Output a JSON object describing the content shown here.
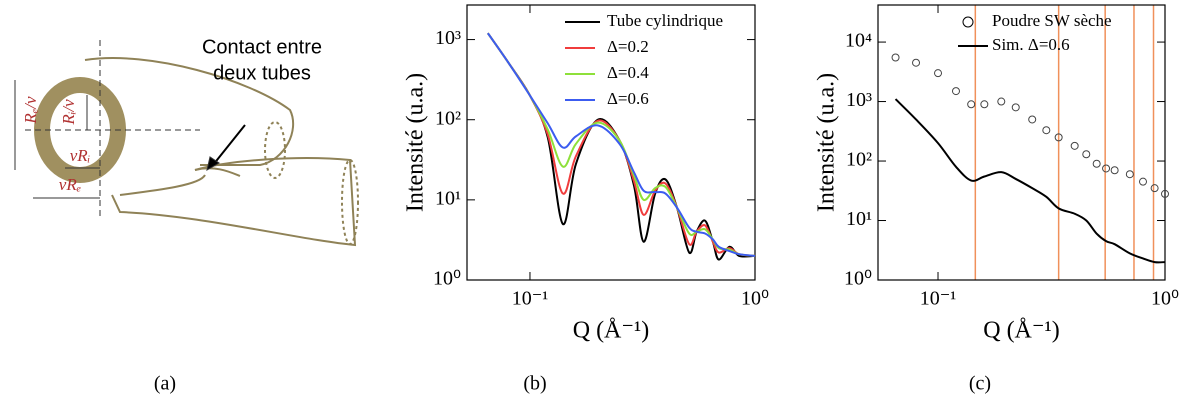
{
  "diagram": {
    "contact_label": [
      "Contact entre",
      "deux tubes"
    ],
    "symbols": [
      "Rₑ/ν",
      "Rᵢ/ν",
      "νRᵢ",
      "νRₑ"
    ]
  },
  "captions": [
    "(a)",
    "(b)",
    "(c)"
  ],
  "chart_data": [
    {
      "type": "line",
      "xlabel": "Q (Å⁻¹)",
      "ylabel": "Intensité (u.a.)",
      "xscale": "log",
      "yscale": "log",
      "xlim": [
        0.0525,
        1
      ],
      "ylim": [
        1,
        2700
      ],
      "xticks": [
        {
          "value": 0.1,
          "label": "10⁻¹"
        },
        {
          "value": 1,
          "label": "10⁰"
        }
      ],
      "yticks": [
        {
          "value": 1,
          "label": "10⁰"
        },
        {
          "value": 10,
          "label": "10¹"
        },
        {
          "value": 100,
          "label": "10²"
        },
        {
          "value": 1000,
          "label": "10³"
        }
      ],
      "x": [
        0.065,
        0.08,
        0.1,
        0.12,
        0.14,
        0.16,
        0.2,
        0.25,
        0.29,
        0.32,
        0.36,
        0.4,
        0.45,
        0.51,
        0.55,
        0.6,
        0.65,
        0.69,
        0.77,
        0.85,
        1
      ],
      "series": [
        {
          "name": "Tube cylindrique",
          "color": "#000000",
          "style": "line",
          "values": [
            1200,
            520,
            200,
            60,
            5,
            28,
            100,
            55,
            15,
            3,
            12,
            18,
            8,
            2.2,
            4,
            5.5,
            3,
            1.8,
            2.6,
            2,
            2
          ]
        },
        {
          "name": "Δ=0.2",
          "color": "#f03c3c",
          "style": "line",
          "values": [
            1200,
            520,
            200,
            65,
            12,
            35,
            97,
            55,
            17,
            6.5,
            13,
            16,
            8,
            2.8,
            4,
            4.8,
            3,
            2.2,
            2.5,
            2.1,
            2
          ]
        },
        {
          "name": "Δ=0.4",
          "color": "#8ee03a",
          "style": "line",
          "values": [
            1200,
            520,
            200,
            75,
            26,
            50,
            92,
            55,
            20,
            10,
            14,
            14.5,
            8,
            3.8,
            4,
            4.3,
            3.2,
            2.5,
            2.4,
            2.1,
            2
          ]
        },
        {
          "name": "Δ=0.6",
          "color": "#3c5cf0",
          "style": "line",
          "values": [
            1200,
            520,
            200,
            90,
            45,
            62,
            85,
            50,
            22,
            13,
            12.5,
            12,
            8,
            4.5,
            4,
            3.8,
            3.2,
            2.6,
            2.3,
            2.1,
            2
          ]
        }
      ]
    },
    {
      "type": "line",
      "xlabel": "Q (Å⁻¹)",
      "ylabel": "Intensité (u.a.)",
      "xscale": "log",
      "yscale": "log",
      "xlim": [
        0.0544,
        1
      ],
      "ylim": [
        1,
        42000
      ],
      "xticks": [
        {
          "value": 0.1,
          "label": "10⁻¹"
        },
        {
          "value": 1,
          "label": "10⁰"
        }
      ],
      "yticks": [
        {
          "value": 1,
          "label": "10⁰"
        },
        {
          "value": 10,
          "label": "10¹"
        },
        {
          "value": 100,
          "label": "10²"
        },
        {
          "value": 1000,
          "label": "10³"
        },
        {
          "value": 10000,
          "label": "10⁴"
        }
      ],
      "vlines": [
        0.146,
        0.34,
        0.545,
        0.73,
        0.89
      ],
      "vline_color": "#f0905a",
      "x": [
        0.065,
        0.08,
        0.1,
        0.12,
        0.14,
        0.16,
        0.19,
        0.22,
        0.26,
        0.3,
        0.34,
        0.4,
        0.45,
        0.5,
        0.55,
        0.6,
        0.7,
        0.8,
        0.9,
        1
      ],
      "series": [
        {
          "name": "Poudre SW sèche",
          "color": "#444444",
          "style": "markers",
          "values": [
            5500,
            4500,
            3000,
            1500,
            900,
            900,
            1000,
            800,
            500,
            330,
            250,
            180,
            130,
            90,
            75,
            70,
            60,
            45,
            35,
            28
          ]
        },
        {
          "name": "Sim. Δ=0.6",
          "color": "#000000",
          "style": "line",
          "values": [
            1100,
            500,
            200,
            80,
            47,
            55,
            65,
            50,
            35,
            25,
            16,
            13,
            10,
            6,
            4.5,
            4,
            2.8,
            2.3,
            2,
            2
          ]
        }
      ]
    }
  ]
}
